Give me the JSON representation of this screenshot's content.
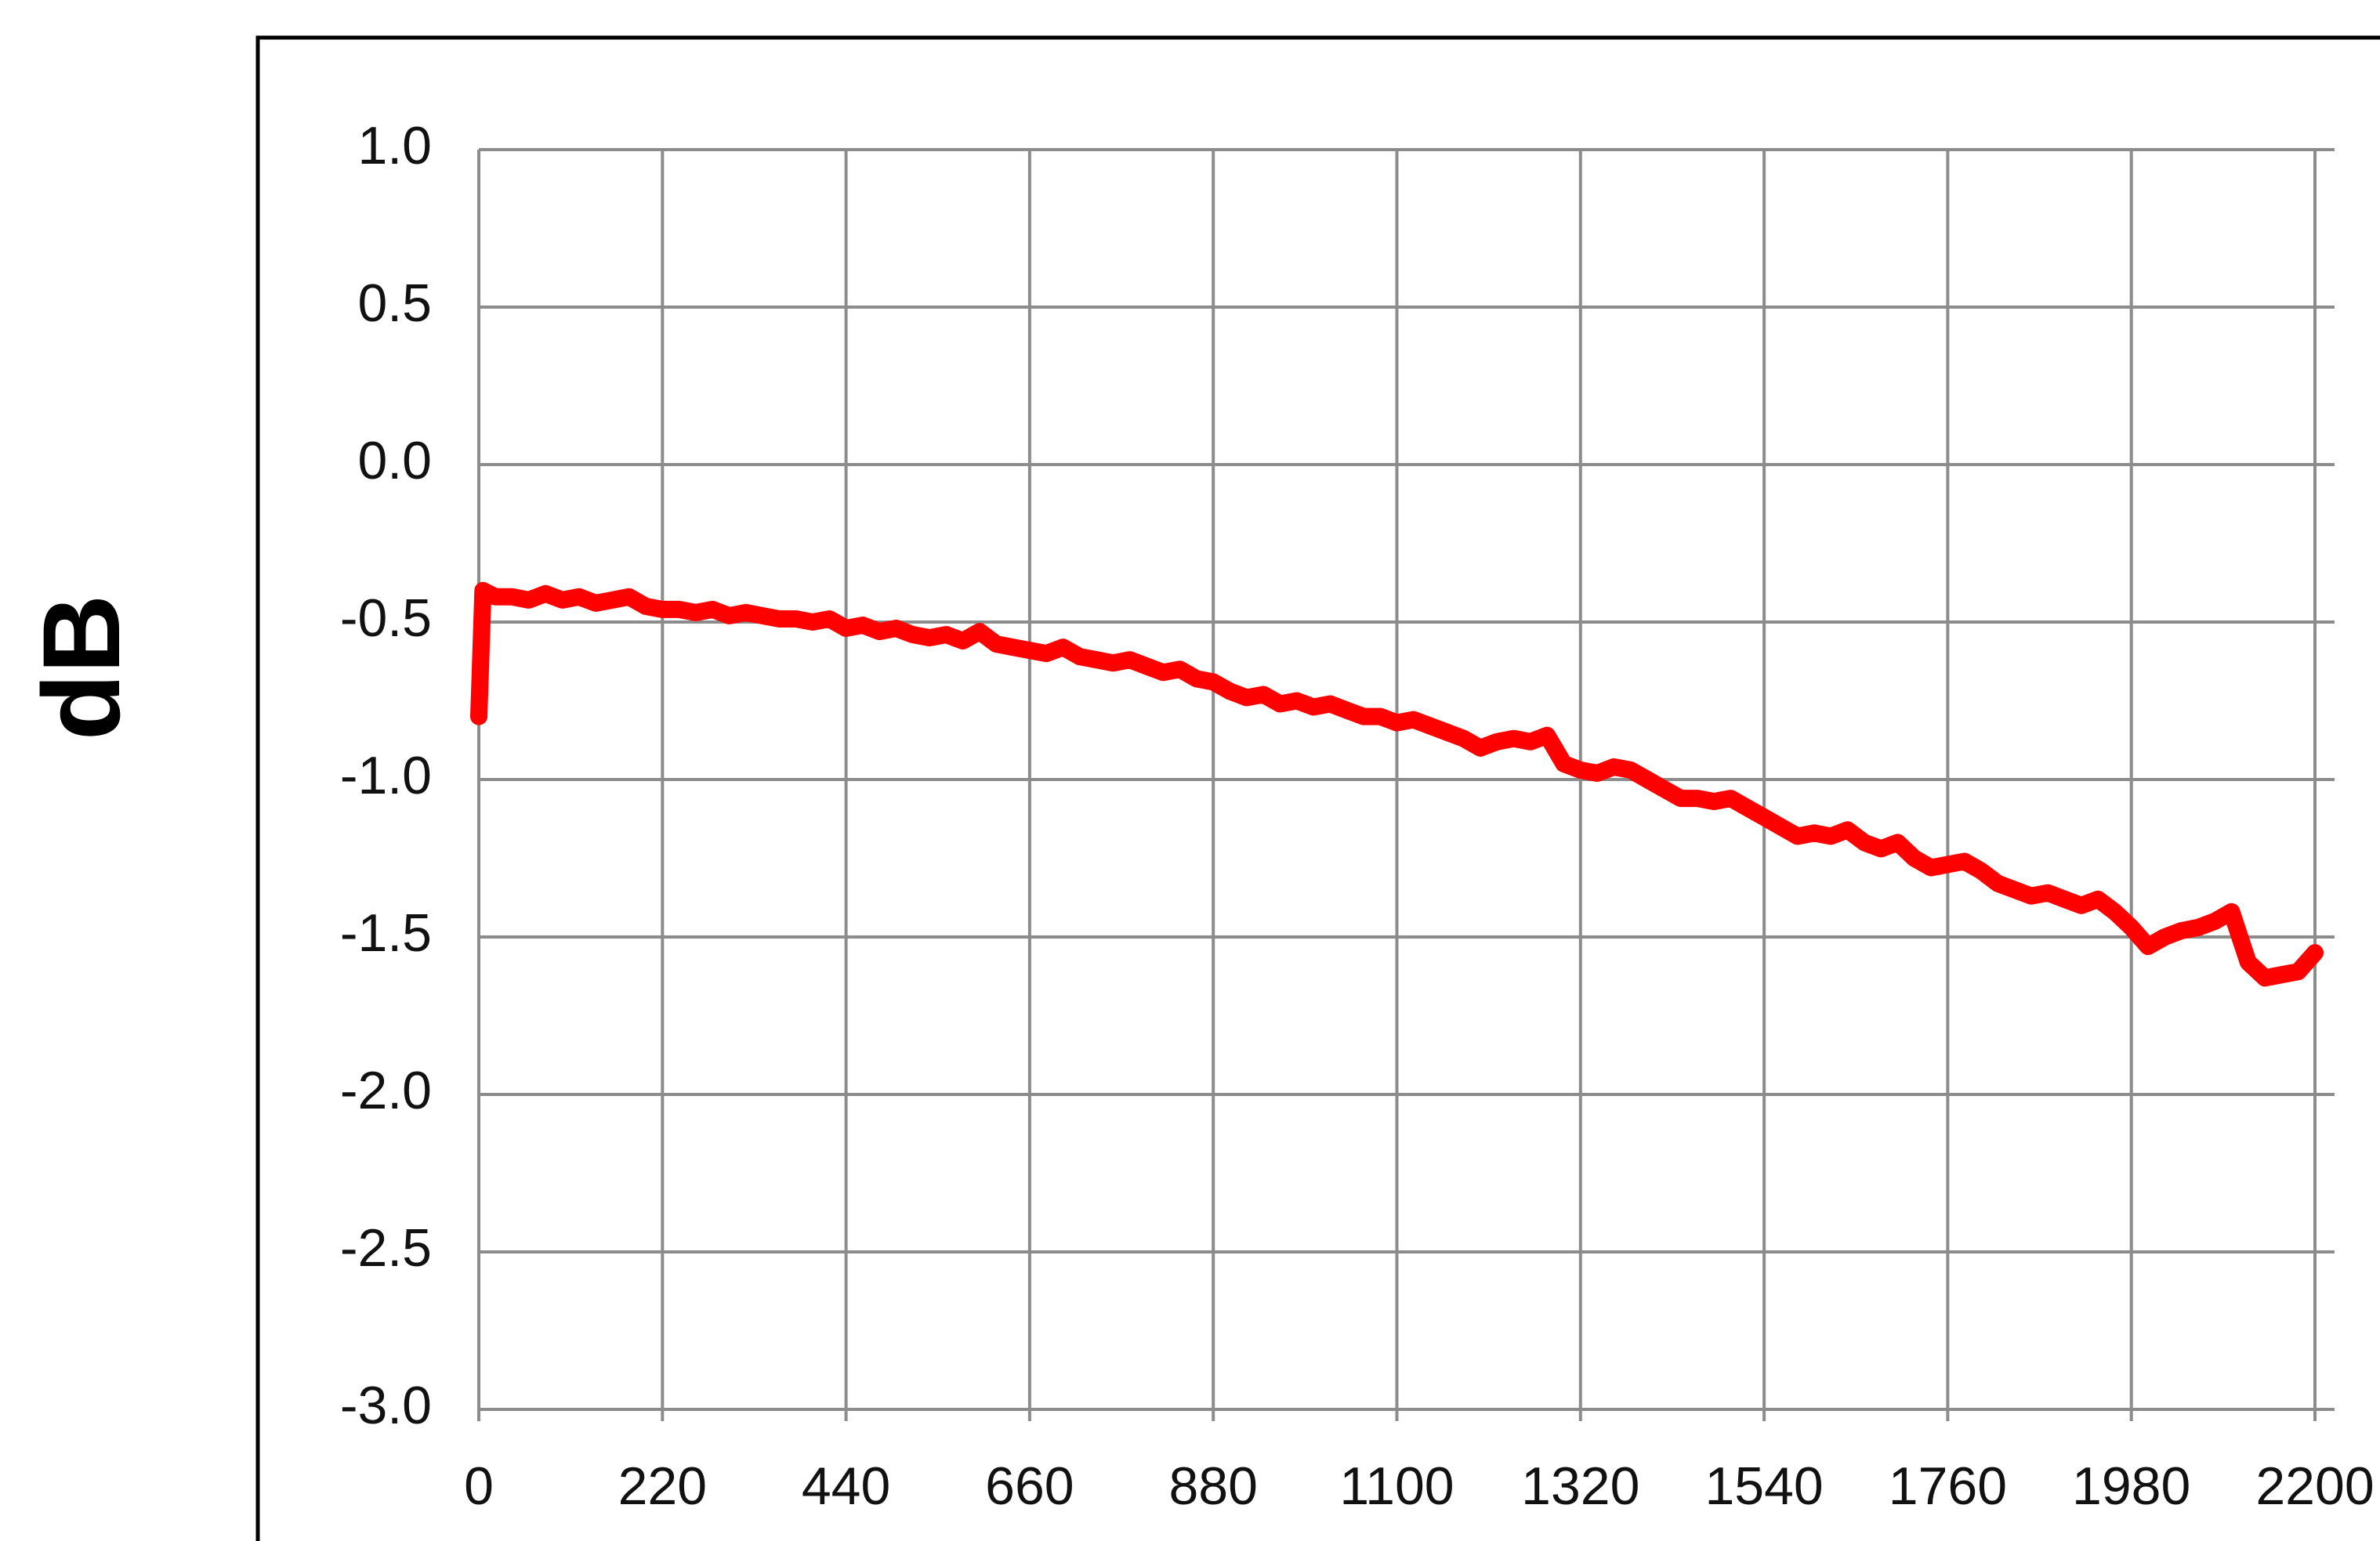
{
  "chart_data": {
    "type": "line",
    "title": "",
    "xlabel": "",
    "ylabel": "dB",
    "xlim": [
      0,
      2200
    ],
    "ylim": [
      -3.0,
      1.0
    ],
    "x_ticks": [
      "0",
      "220",
      "440",
      "660",
      "880",
      "1100",
      "1320",
      "1540",
      "1760",
      "1980",
      "2200"
    ],
    "y_ticks": [
      "1.0",
      "0.5",
      "0.0",
      "-0.5",
      "-1.0",
      "-1.5",
      "-2.0",
      "-2.5",
      "-3.0"
    ],
    "grid": true,
    "legend": "none",
    "series": [
      {
        "color": "#ff0000",
        "x": [
          0,
          5,
          20,
          40,
          60,
          80,
          100,
          120,
          140,
          160,
          180,
          200,
          220,
          240,
          260,
          280,
          300,
          320,
          340,
          360,
          380,
          400,
          420,
          440,
          460,
          480,
          500,
          520,
          540,
          560,
          580,
          600,
          620,
          640,
          660,
          680,
          700,
          720,
          740,
          760,
          780,
          800,
          820,
          840,
          860,
          880,
          900,
          920,
          940,
          960,
          980,
          1000,
          1020,
          1040,
          1060,
          1080,
          1100,
          1120,
          1140,
          1160,
          1180,
          1200,
          1220,
          1240,
          1260,
          1280,
          1300,
          1320,
          1340,
          1360,
          1380,
          1400,
          1420,
          1440,
          1460,
          1480,
          1500,
          1520,
          1540,
          1560,
          1580,
          1600,
          1620,
          1640,
          1660,
          1680,
          1700,
          1720,
          1740,
          1760,
          1780,
          1800,
          1820,
          1840,
          1860,
          1880,
          1900,
          1920,
          1940,
          1960,
          1980,
          2000,
          2020,
          2040,
          2060,
          2080,
          2100,
          2120,
          2140,
          2160,
          2180,
          2200
        ],
        "y": [
          -0.8,
          -0.4,
          -0.42,
          -0.42,
          -0.43,
          -0.41,
          -0.43,
          -0.42,
          -0.44,
          -0.43,
          -0.42,
          -0.45,
          -0.46,
          -0.46,
          -0.47,
          -0.46,
          -0.48,
          -0.47,
          -0.48,
          -0.49,
          -0.49,
          -0.5,
          -0.49,
          -0.52,
          -0.51,
          -0.53,
          -0.52,
          -0.54,
          -0.55,
          -0.54,
          -0.56,
          -0.53,
          -0.57,
          -0.58,
          -0.59,
          -0.6,
          -0.58,
          -0.61,
          -0.62,
          -0.63,
          -0.62,
          -0.64,
          -0.66,
          -0.65,
          -0.68,
          -0.69,
          -0.72,
          -0.74,
          -0.73,
          -0.76,
          -0.75,
          -0.77,
          -0.76,
          -0.78,
          -0.8,
          -0.8,
          -0.82,
          -0.81,
          -0.83,
          -0.85,
          -0.87,
          -0.9,
          -0.88,
          -0.87,
          -0.88,
          -0.86,
          -0.95,
          -0.97,
          -0.98,
          -0.96,
          -0.97,
          -1.0,
          -1.03,
          -1.06,
          -1.06,
          -1.07,
          -1.06,
          -1.09,
          -1.12,
          -1.15,
          -1.18,
          -1.17,
          -1.18,
          -1.16,
          -1.2,
          -1.22,
          -1.2,
          -1.25,
          -1.28,
          -1.27,
          -1.26,
          -1.29,
          -1.33,
          -1.35,
          -1.37,
          -1.36,
          -1.38,
          -1.4,
          -1.38,
          -1.42,
          -1.47,
          -1.53,
          -1.5,
          -1.48,
          -1.47,
          -1.45,
          -1.42,
          -1.58,
          -1.63,
          -1.62,
          -1.61,
          -1.55
        ]
      }
    ]
  }
}
